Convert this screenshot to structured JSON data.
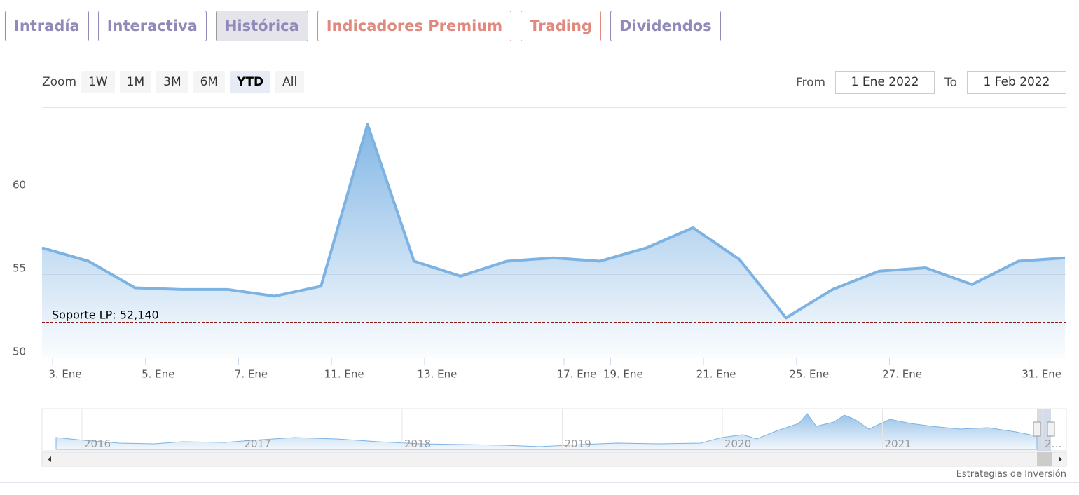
{
  "tabs": [
    {
      "label": "Intradía",
      "active": false,
      "color": "#8f8ab8"
    },
    {
      "label": "Interactiva",
      "active": false,
      "color": "#8f8ab8"
    },
    {
      "label": "Histórica",
      "active": true,
      "color": "#8f8ab8"
    },
    {
      "label": "Indicadores Premium",
      "active": false,
      "color": "#e0897f"
    },
    {
      "label": "Trading",
      "active": false,
      "color": "#e0897f"
    },
    {
      "label": "Dividendos",
      "active": false,
      "color": "#8f8ab8"
    }
  ],
  "zoom": {
    "label": "Zoom",
    "buttons": [
      "1W",
      "1M",
      "3M",
      "6M",
      "YTD",
      "All"
    ],
    "active": "YTD"
  },
  "range": {
    "from_label": "From",
    "from": "1 Ene 2022",
    "to_label": "To",
    "to": "1 Feb 2022"
  },
  "chart_data": {
    "type": "area",
    "color": "#7db3e3",
    "categories": [
      "3. Ene",
      null,
      "5. Ene",
      null,
      "7. Ene",
      null,
      "11. Ene",
      null,
      "13. Ene",
      null,
      null,
      "17. Ene",
      "19. Ene",
      null,
      "21. Ene",
      null,
      "25. Ene",
      null,
      "27. Ene",
      null,
      null,
      "31. Ene",
      null
    ],
    "values": [
      56.6,
      55.8,
      54.2,
      54.1,
      54.1,
      53.7,
      54.3,
      64.0,
      55.8,
      54.9,
      55.8,
      56.0,
      55.8,
      56.6,
      57.8,
      55.9,
      52.4,
      54.1,
      55.2,
      55.4,
      54.4,
      55.8,
      56.0
    ],
    "ylim": [
      50,
      65
    ],
    "yticks": [
      50,
      55,
      60
    ],
    "grid": true,
    "plot_line": {
      "value": 52.14,
      "label": "Soporte LP: 52,140",
      "color": "#8b1a1a"
    }
  },
  "navigator": {
    "labels": [
      "2016",
      "2017",
      "2018",
      "2019",
      "2020",
      "2021",
      "2…"
    ]
  },
  "credit": "Estrategias de Inversión"
}
